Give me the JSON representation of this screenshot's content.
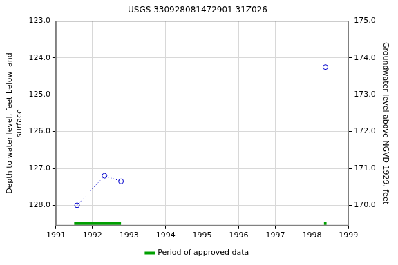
{
  "chart_data": {
    "type": "line",
    "title": "USGS 330928081472901 31Z026",
    "x": [
      1991.58,
      1992.33,
      1992.78,
      1995.5,
      1998.37
    ],
    "series": [
      {
        "values": [
          128.0,
          127.2,
          127.35,
          null,
          124.25
        ],
        "color": "#0000cc",
        "marker": "circle",
        "line_style": "dotted"
      }
    ],
    "xlim": [
      1991,
      1999
    ],
    "xticks": [
      1991,
      1992,
      1993,
      1994,
      1995,
      1996,
      1997,
      1998,
      1999
    ],
    "ylabel": [
      "Depth to water level, feet below land",
      "surface"
    ],
    "ylim": [
      128.55,
      123.0
    ],
    "yticks": [
      {
        "value": 123,
        "label": "123.0"
      },
      {
        "value": 124,
        "label": "124.0"
      },
      {
        "value": 125,
        "label": "125.0"
      },
      {
        "value": 126,
        "label": "126.0"
      },
      {
        "value": 127,
        "label": "127.0"
      },
      {
        "value": 128,
        "label": "128.0"
      }
    ],
    "y2label": "Groundwater level above NGVD 1929, feet",
    "y2lim": [
      169.45,
      175.0
    ],
    "y2ticks": [
      {
        "value": 170,
        "label": "170.0"
      },
      {
        "value": 171,
        "label": "171.0"
      },
      {
        "value": 172,
        "label": "172.0"
      },
      {
        "value": 173,
        "label": "173.0"
      },
      {
        "value": 174,
        "label": "174.0"
      },
      {
        "value": 175,
        "label": "175.0"
      }
    ],
    "approved_periods": {
      "name": "Period of approved data",
      "color": "#00a000",
      "ranges": [
        [
          1991.5,
          1992.78
        ],
        [
          1998.33,
          1998.4
        ]
      ]
    },
    "grid": true,
    "legend": "bottom"
  }
}
